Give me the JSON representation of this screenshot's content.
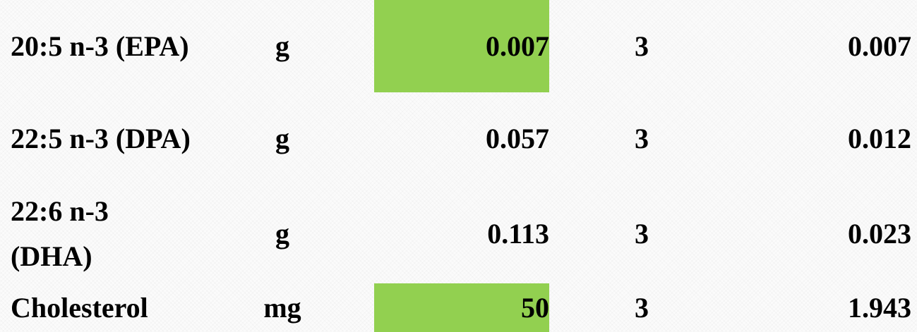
{
  "table": {
    "rows": [
      [
        "20:5 n-3 (EPA)",
        "g",
        "0.007",
        "3",
        "0.007"
      ],
      [
        "22:5 n-3 (DPA)",
        "g",
        "0.057",
        "3",
        "0.012"
      ],
      [
        "22:6 n-3 (DHA)",
        "g",
        "0.113",
        "3",
        "0.023"
      ],
      [
        "Cholesterol",
        "mg",
        "50",
        "3",
        "1.943"
      ]
    ]
  }
}
